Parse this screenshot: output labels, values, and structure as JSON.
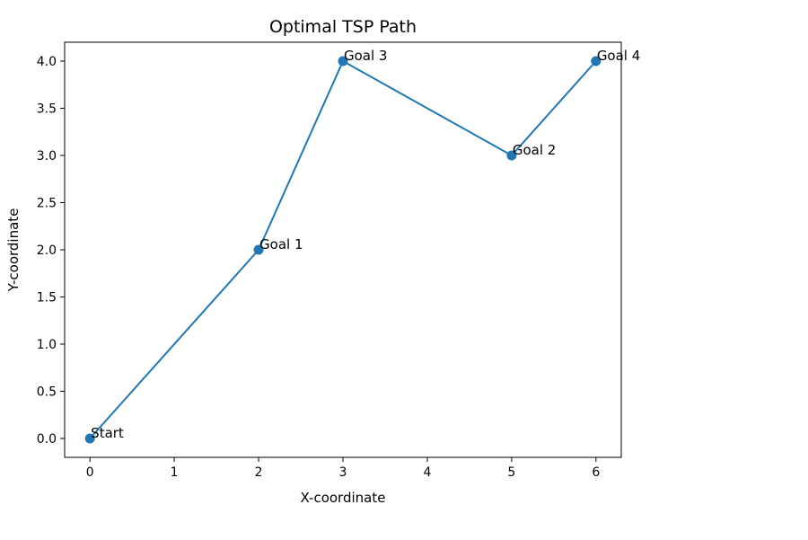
{
  "chart_data": {
    "type": "line",
    "title": "Optimal TSP Path",
    "xlabel": "X-coordinate",
    "ylabel": "Y-coordinate",
    "x": [
      0,
      2,
      3,
      5,
      6
    ],
    "y": [
      0,
      2,
      4,
      3,
      4
    ],
    "point_labels": [
      "Start",
      "Goal 1",
      "Goal 3",
      "Goal 2",
      "Goal 4"
    ],
    "xticks": [
      "0",
      "1",
      "2",
      "3",
      "4",
      "5",
      "6"
    ],
    "yticks": [
      "0.0",
      "0.5",
      "1.0",
      "1.5",
      "2.0",
      "2.5",
      "3.0",
      "3.5",
      "4.0"
    ],
    "xlim": [
      -0.3,
      6.3
    ],
    "ylim": [
      -0.2,
      4.2
    ],
    "grid": false,
    "line_color": "#1f77b4",
    "marker": "circle"
  }
}
